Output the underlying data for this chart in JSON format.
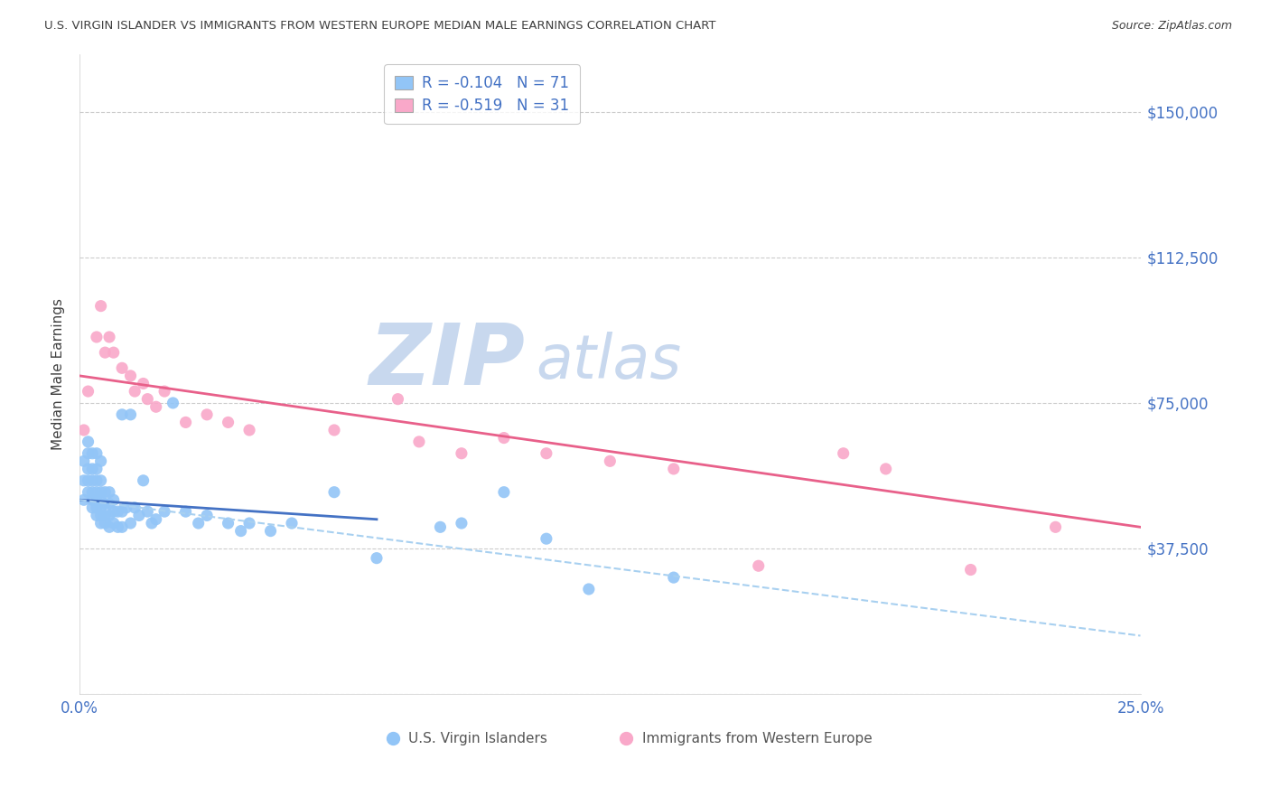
{
  "title": "U.S. VIRGIN ISLANDER VS IMMIGRANTS FROM WESTERN EUROPE MEDIAN MALE EARNINGS CORRELATION CHART",
  "source": "Source: ZipAtlas.com",
  "ylabel_label": "Median Male Earnings",
  "x_min": 0.0,
  "x_max": 0.25,
  "y_min": 0,
  "y_max": 165000,
  "yticks": [
    0,
    37500,
    75000,
    112500,
    150000
  ],
  "ytick_labels": [
    "",
    "$37,500",
    "$75,000",
    "$112,500",
    "$150,000"
  ],
  "xticks": [
    0.0,
    0.05,
    0.1,
    0.15,
    0.2,
    0.25
  ],
  "xtick_labels": [
    "0.0%",
    "",
    "",
    "",
    "",
    "25.0%"
  ],
  "legend_r1": "-0.104",
  "legend_n1": "71",
  "legend_r2": "-0.519",
  "legend_n2": "31",
  "blue_color": "#92C5F7",
  "pink_color": "#F9A8C9",
  "trend_blue": "#4472C4",
  "trend_pink": "#E8608A",
  "trend_dash_color": "#A8D0F0",
  "watermark_zip_color": "#C8D8EE",
  "watermark_atlas_color": "#C8D8EE",
  "title_color": "#404040",
  "source_color": "#404040",
  "axis_label_color": "#404040",
  "tick_color_right": "#4472C4",
  "tick_color_bottom": "#4472C4",
  "legend_text_color": "#4472C4",
  "blue_scatter_x": [
    0.001,
    0.001,
    0.001,
    0.002,
    0.002,
    0.002,
    0.002,
    0.002,
    0.003,
    0.003,
    0.003,
    0.003,
    0.003,
    0.003,
    0.004,
    0.004,
    0.004,
    0.004,
    0.004,
    0.004,
    0.004,
    0.005,
    0.005,
    0.005,
    0.005,
    0.005,
    0.005,
    0.005,
    0.006,
    0.006,
    0.006,
    0.006,
    0.007,
    0.007,
    0.007,
    0.007,
    0.008,
    0.008,
    0.008,
    0.009,
    0.009,
    0.01,
    0.01,
    0.01,
    0.011,
    0.012,
    0.012,
    0.013,
    0.014,
    0.015,
    0.016,
    0.017,
    0.018,
    0.02,
    0.022,
    0.025,
    0.028,
    0.03,
    0.035,
    0.038,
    0.04,
    0.045,
    0.05,
    0.06,
    0.07,
    0.085,
    0.09,
    0.1,
    0.11,
    0.12,
    0.14
  ],
  "blue_scatter_y": [
    50000,
    55000,
    60000,
    52000,
    55000,
    58000,
    62000,
    65000,
    48000,
    50000,
    52000,
    55000,
    58000,
    62000,
    46000,
    48000,
    50000,
    52000,
    55000,
    58000,
    62000,
    44000,
    46000,
    48000,
    50000,
    52000,
    55000,
    60000,
    44000,
    46000,
    49000,
    52000,
    43000,
    46000,
    49000,
    52000,
    44000,
    47000,
    50000,
    43000,
    47000,
    43000,
    47000,
    72000,
    48000,
    44000,
    72000,
    48000,
    46000,
    55000,
    47000,
    44000,
    45000,
    47000,
    75000,
    47000,
    44000,
    46000,
    44000,
    42000,
    44000,
    42000,
    44000,
    52000,
    35000,
    43000,
    44000,
    52000,
    40000,
    27000,
    30000
  ],
  "pink_scatter_x": [
    0.001,
    0.002,
    0.004,
    0.005,
    0.006,
    0.007,
    0.008,
    0.01,
    0.012,
    0.013,
    0.015,
    0.016,
    0.018,
    0.02,
    0.025,
    0.03,
    0.035,
    0.04,
    0.06,
    0.075,
    0.08,
    0.09,
    0.1,
    0.11,
    0.125,
    0.14,
    0.16,
    0.18,
    0.19,
    0.21,
    0.23
  ],
  "pink_scatter_y": [
    68000,
    78000,
    92000,
    100000,
    88000,
    92000,
    88000,
    84000,
    82000,
    78000,
    80000,
    76000,
    74000,
    78000,
    70000,
    72000,
    70000,
    68000,
    68000,
    76000,
    65000,
    62000,
    66000,
    62000,
    60000,
    58000,
    33000,
    62000,
    58000,
    32000,
    43000
  ],
  "blue_trend_x": [
    0.0,
    0.07
  ],
  "blue_trend_y": [
    50000,
    45000
  ],
  "blue_dash_trend_x": [
    0.0,
    0.25
  ],
  "blue_dash_trend_y": [
    50000,
    15000
  ],
  "pink_trend_x": [
    0.0,
    0.25
  ],
  "pink_trend_y": [
    82000,
    43000
  ],
  "marker_size": 90,
  "background_color": "#FFFFFF",
  "grid_color": "#CCCCCC",
  "legend_box_color": "#FFFFFF",
  "legend_border_color": "#BBBBBB"
}
